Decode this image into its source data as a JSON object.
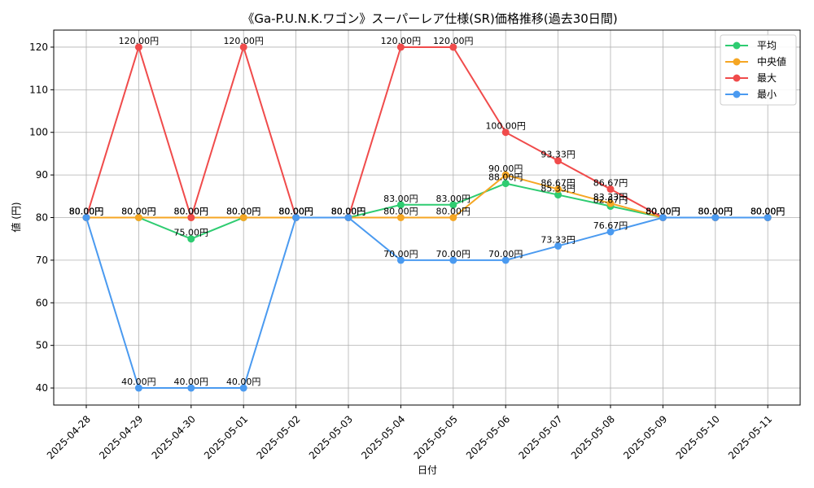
{
  "chart_data": {
    "type": "line",
    "title": "《Ga-P.U.N.K.ワゴン》スーパーレア仕様(SR)価格推移(過去30日間)",
    "xlabel": "日付",
    "ylabel": "値 (円)",
    "ylim": [
      36,
      124
    ],
    "yticks": [
      40,
      50,
      60,
      70,
      80,
      90,
      100,
      110,
      120
    ],
    "grid": true,
    "legend_position": "top-right",
    "label_suffix": "円",
    "categories": [
      "2025-04-28",
      "2025-04-29",
      "2025-04-30",
      "2025-05-01",
      "2025-05-02",
      "2025-05-03",
      "2025-05-04",
      "2025-05-05",
      "2025-05-06",
      "2025-05-07",
      "2025-05-08",
      "2025-05-09",
      "2025-05-10",
      "2025-05-11"
    ],
    "series": [
      {
        "name": "平均",
        "color": "#2ecc71",
        "values": [
          80,
          80,
          75,
          80,
          80,
          80,
          83,
          83,
          88,
          85.33,
          82.67,
          80,
          80,
          80
        ]
      },
      {
        "name": "中央値",
        "color": "#f5a623",
        "values": [
          80,
          80,
          80,
          80,
          80,
          80,
          80,
          80,
          90,
          86.67,
          83.33,
          80,
          80,
          80
        ]
      },
      {
        "name": "最大",
        "color": "#f04b4b",
        "values": [
          80,
          120,
          80,
          120,
          80,
          80,
          120,
          120,
          100,
          93.33,
          86.67,
          80,
          80,
          80
        ]
      },
      {
        "name": "最小",
        "color": "#4a9af0",
        "values": [
          80,
          40,
          40,
          40,
          80,
          80,
          70,
          70,
          70,
          73.33,
          76.67,
          80,
          80,
          80
        ]
      }
    ]
  }
}
